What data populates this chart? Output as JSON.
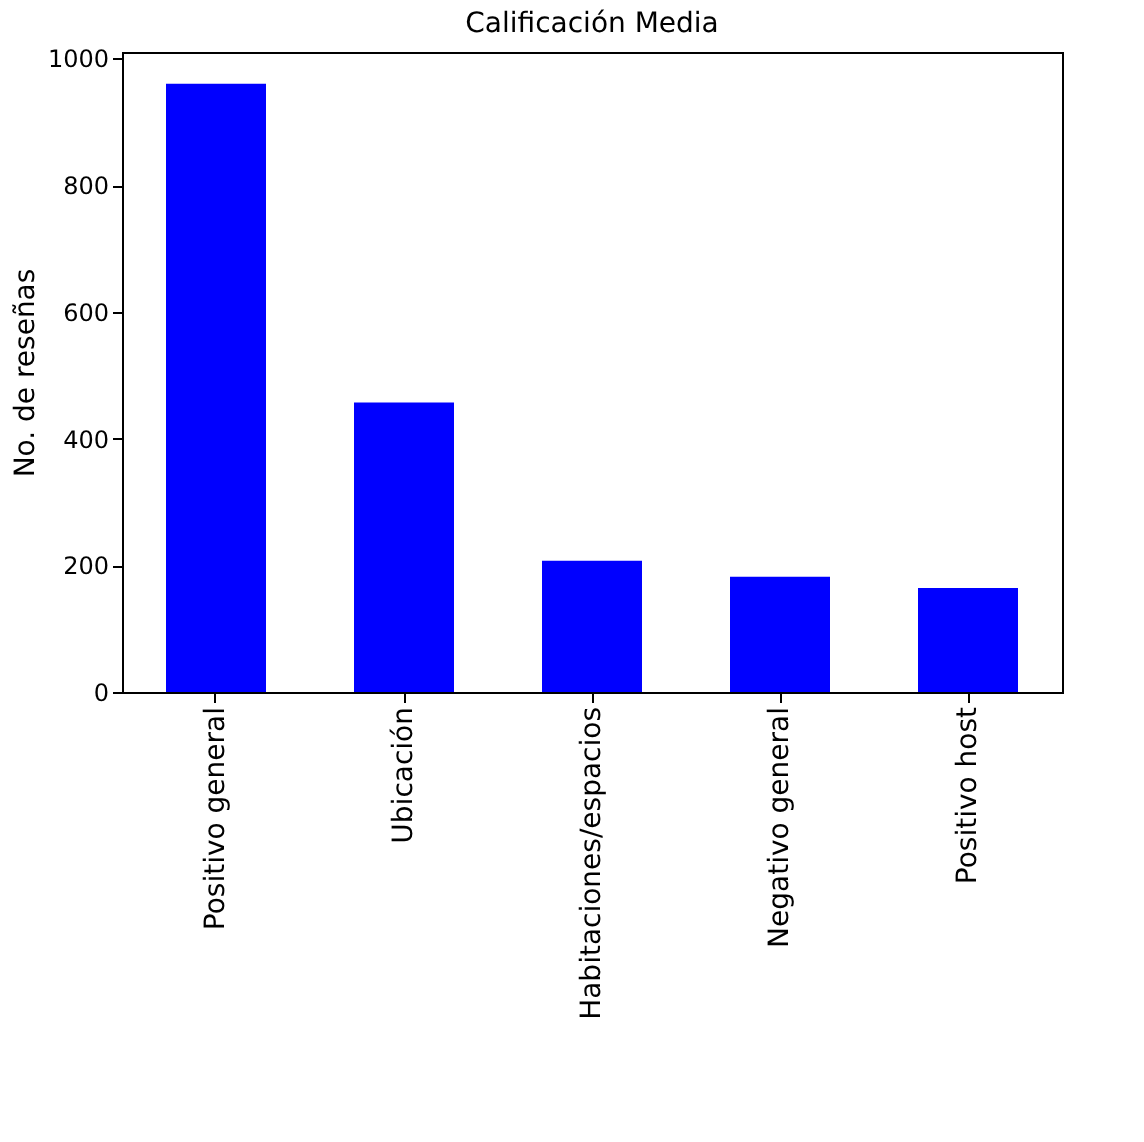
{
  "chart_data": {
    "type": "bar",
    "title": "Calificación Media",
    "ylabel": "No. de reseñas",
    "categories": [
      "Positivo general",
      "Ubicación",
      "Habitaciones/espacios",
      "Negativo general",
      "Positivo host"
    ],
    "values": [
      960,
      457,
      207,
      182,
      164
    ],
    "color": "#0000ff",
    "ylim": [
      0,
      1010
    ],
    "yticks": [
      0,
      200,
      400,
      600,
      800,
      1000
    ],
    "grid": false
  }
}
